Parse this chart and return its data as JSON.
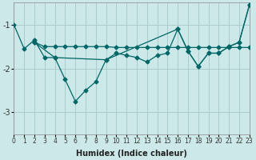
{
  "xlabel": "Humidex (Indice chaleur)",
  "bg_color": "#cce8e8",
  "grid_color": "#aacccc",
  "line_color": "#006666",
  "xlim": [
    0,
    23
  ],
  "ylim": [
    -3.5,
    -0.5
  ],
  "yticks": [
    -3,
    -2,
    -1
  ],
  "xticks": [
    0,
    1,
    2,
    3,
    4,
    5,
    6,
    7,
    8,
    9,
    10,
    11,
    12,
    13,
    14,
    15,
    16,
    17,
    18,
    19,
    20,
    21,
    22,
    23
  ],
  "line_zigzag_x": [
    0,
    1,
    2,
    3,
    4,
    5,
    6,
    7,
    8,
    9,
    10,
    11,
    12,
    13,
    14,
    15,
    16,
    17,
    18,
    19,
    20,
    21,
    22,
    23
  ],
  "line_zigzag_y": [
    -1.0,
    -1.55,
    -1.35,
    -1.75,
    -1.75,
    -2.25,
    -2.75,
    -2.5,
    -2.3,
    -1.8,
    -1.65,
    -1.7,
    -1.75,
    -1.85,
    -1.7,
    -1.65,
    -1.1,
    -1.6,
    -1.95,
    -1.65,
    -1.65,
    -1.5,
    -1.4,
    -0.55
  ],
  "line_flat_x": [
    2,
    3,
    4,
    5,
    6,
    7,
    8,
    9,
    10,
    11,
    12,
    13,
    14,
    15,
    16,
    17,
    18,
    19,
    20,
    21,
    22,
    23
  ],
  "line_flat_y": [
    -1.4,
    -1.5,
    -1.5,
    -1.5,
    -1.5,
    -1.5,
    -1.5,
    -1.5,
    -1.52,
    -1.52,
    -1.52,
    -1.52,
    -1.52,
    -1.52,
    -1.52,
    -1.52,
    -1.52,
    -1.52,
    -1.52,
    -1.52,
    -1.52,
    -1.52
  ],
  "line_diag_x": [
    2,
    4,
    9,
    16,
    17,
    18,
    19,
    20,
    21,
    22,
    23
  ],
  "line_diag_y": [
    -1.4,
    -1.75,
    -1.8,
    -1.1,
    -1.6,
    -1.95,
    -1.65,
    -1.65,
    -1.5,
    -1.4,
    -0.55
  ],
  "marker_size": 2.5,
  "linewidth": 0.9
}
